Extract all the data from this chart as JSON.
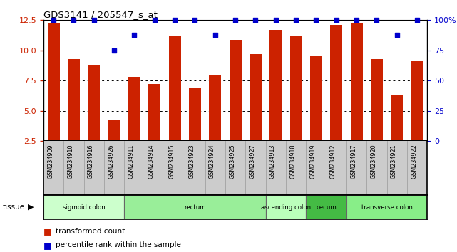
{
  "title": "GDS3141 / 205547_s_at",
  "samples": [
    "GSM234909",
    "GSM234910",
    "GSM234916",
    "GSM234926",
    "GSM234911",
    "GSM234914",
    "GSM234915",
    "GSM234923",
    "GSM234924",
    "GSM234925",
    "GSM234927",
    "GSM234913",
    "GSM234918",
    "GSM234919",
    "GSM234912",
    "GSM234917",
    "GSM234920",
    "GSM234921",
    "GSM234922"
  ],
  "bar_values": [
    12.2,
    9.3,
    8.8,
    4.3,
    7.8,
    7.2,
    11.2,
    6.9,
    7.9,
    10.9,
    9.7,
    11.7,
    11.2,
    9.6,
    12.1,
    12.3,
    9.3,
    6.3,
    9.1
  ],
  "percentile_values": [
    100,
    100,
    100,
    75,
    88,
    100,
    100,
    100,
    88,
    100,
    100,
    100,
    100,
    100,
    100,
    100,
    100,
    88,
    100
  ],
  "ylim_left": [
    2.5,
    12.5
  ],
  "ylim_right": [
    0,
    100
  ],
  "yticks_left": [
    2.5,
    5.0,
    7.5,
    10.0,
    12.5
  ],
  "yticks_right": [
    0,
    25,
    50,
    75,
    100
  ],
  "ytick_labels_right": [
    "0",
    "25",
    "50",
    "75",
    "100%"
  ],
  "bar_color": "#CC2200",
  "scatter_color": "#0000CC",
  "tissue_groups": [
    {
      "label": "sigmoid colon",
      "start": 0,
      "end": 3,
      "color": "#CCFFCC"
    },
    {
      "label": "rectum",
      "start": 4,
      "end": 10,
      "color": "#99EE99"
    },
    {
      "label": "ascending colon",
      "start": 11,
      "end": 12,
      "color": "#BBFFBB"
    },
    {
      "label": "cecum",
      "start": 13,
      "end": 14,
      "color": "#44BB44"
    },
    {
      "label": "transverse colon",
      "start": 15,
      "end": 18,
      "color": "#88EE88"
    }
  ],
  "legend_bar_label": "transformed count",
  "legend_scatter_label": "percentile rank within the sample",
  "tissue_label": "tissue",
  "background_color": "#FFFFFF",
  "plot_bg_color": "#FFFFFF",
  "label_bg_color": "#CCCCCC"
}
